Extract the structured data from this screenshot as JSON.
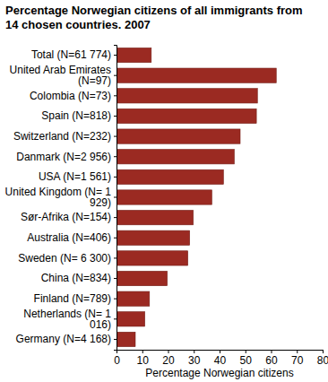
{
  "chart_data": {
    "type": "bar",
    "orientation": "horizontal",
    "title": "Percentage Norwegian citizens of all immigrants from 14 chosen countries. 2007",
    "x_label": "Percentage Norwegian citizens",
    "categories": [
      "Total (N=61 774)",
      "United Arab Emirates (N=97)",
      "Colombia (N=73)",
      "Spain (N=818)",
      "Switzerland (N=232)",
      "Danmark (N=2 956)",
      "USA (N=1 561)",
      "United Kingdom (N= 1 929)",
      "Sør-Afrika (N=154)",
      "Australia (N=406)",
      "Sweden (N= 6 300)",
      "China (N=834)",
      "Finland (N=789)",
      "Netherlands (N= 1 016)",
      "Germany (N=4 168)"
    ],
    "values": [
      13.5,
      62,
      54.7,
      54.3,
      48,
      45.7,
      41.5,
      37,
      29.8,
      28.4,
      27.7,
      19.7,
      12.8,
      11,
      7.3
    ],
    "color": "#9b2a22",
    "xlim": [
      0,
      80
    ],
    "xticks": [
      0,
      10,
      20,
      30,
      40,
      50,
      60,
      70,
      80
    ],
    "grid": false
  }
}
